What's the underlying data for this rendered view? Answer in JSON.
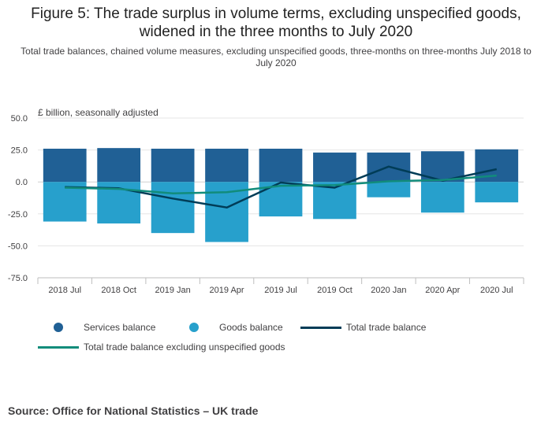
{
  "title_line1": "Figure 5: The trade surplus in volume terms, excluding unspecified goods,",
  "title_line2": "widened in the three months to July 2020",
  "subtitle": "Total trade balances, chained volume measures, excluding unspecified goods, three-months on three-months July 2018 to July 2020",
  "source": "Source: Office for National Statistics – UK trade",
  "colors": {
    "services": "#206095",
    "goods": "#27a0cc",
    "total": "#003c57",
    "total_excl": "#118c7b",
    "grid": "#e5e5e5",
    "axis": "#bebebe"
  },
  "chart_data": {
    "type": "bar",
    "stacked": true,
    "units_label": "£ billion, seasonally adjusted",
    "categories": [
      "2018 Jul",
      "2018 Oct",
      "2019 Jan",
      "2019 Apr",
      "2019 Jul",
      "2019 Oct",
      "2020 Jan",
      "2020 Apr",
      "2020 Jul"
    ],
    "ylim": [
      -75,
      50
    ],
    "yticks": [
      50,
      25,
      0,
      -25,
      -50,
      -75
    ],
    "ytick_labels": [
      "50.0",
      "25.0",
      "0.0",
      "-25.0",
      "-50.0",
      "-75.0"
    ],
    "grid": true,
    "legend_position": "bottom",
    "series": [
      {
        "name": "Services balance",
        "kind": "bar",
        "color": "#206095",
        "values": [
          26.0,
          26.5,
          26.0,
          26.0,
          26.0,
          23.0,
          23.0,
          24.0,
          25.5
        ]
      },
      {
        "name": "Goods balance",
        "kind": "bar",
        "color": "#27a0cc",
        "values": [
          -31.0,
          -32.5,
          -40.0,
          -47.0,
          -27.0,
          -29.0,
          -12.0,
          -24.0,
          -16.0
        ]
      },
      {
        "name": "Total trade balance",
        "kind": "line",
        "color": "#003c57",
        "values": [
          -4.0,
          -5.0,
          -13.0,
          -20.0,
          -0.5,
          -4.5,
          12.0,
          1.0,
          10.0
        ]
      },
      {
        "name": "Total trade balance excluding unspecified goods",
        "kind": "line",
        "color": "#118c7b",
        "values": [
          -4.5,
          -5.5,
          -9.0,
          -8.0,
          -3.0,
          -2.5,
          0.5,
          1.5,
          5.0
        ]
      }
    ]
  }
}
